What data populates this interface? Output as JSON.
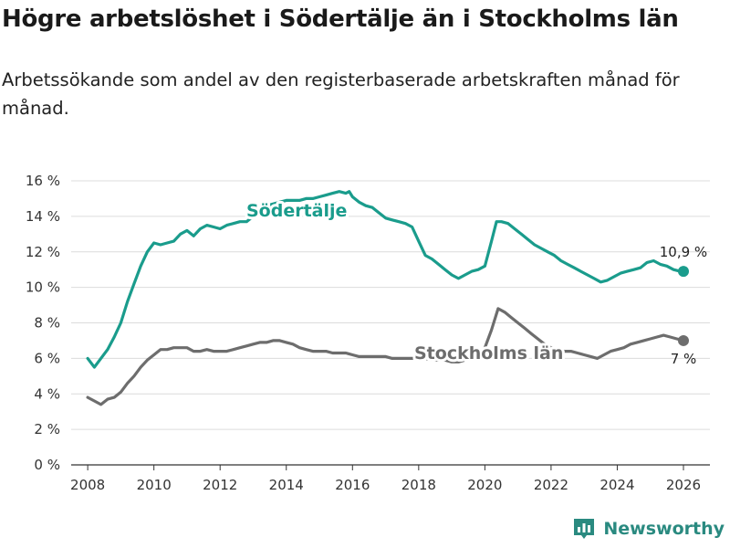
{
  "page": {
    "title": "Högre arbetslöshet i Södertälje än i Stockholms län",
    "subtitle": "Arbetssökande som andel av den registerbaserade arbetskraften månad för månad.",
    "brand": "Newsworthy"
  },
  "colors": {
    "sodertalje": "#1a9c8c",
    "stockholm": "#6d6d6d",
    "grid": "#dcdcdc",
    "axis": "#333333",
    "brand": "#2a8a80"
  },
  "chart_data": {
    "type": "line",
    "title": "Högre arbetslöshet i Södertälje än i Stockholms län",
    "subtitle": "Arbetssökande som andel av den registerbaserade arbetskraften månad för månad.",
    "xlabel": "",
    "ylabel": "",
    "xlim": [
      2007.5,
      2026.8
    ],
    "ylim": [
      0,
      16
    ],
    "y_ticks": [
      0,
      2,
      4,
      6,
      8,
      10,
      12,
      14,
      16
    ],
    "y_tick_labels": [
      "0 %",
      "2 %",
      "4 %",
      "6 %",
      "8 %",
      "10 %",
      "12 %",
      "14 %",
      "16 %"
    ],
    "x_ticks": [
      2008,
      2010,
      2012,
      2014,
      2016,
      2018,
      2020,
      2022,
      2024,
      2026
    ],
    "x_tick_labels": [
      "2008",
      "2010",
      "2012",
      "2014",
      "2016",
      "2018",
      "2020",
      "2022",
      "2024",
      "2026"
    ],
    "grid": true,
    "series": [
      {
        "name": "Södertälje",
        "end_label": "10,9 %",
        "x": [
          2008.0,
          2008.2,
          2008.4,
          2008.6,
          2008.8,
          2009.0,
          2009.2,
          2009.4,
          2009.6,
          2009.8,
          2010.0,
          2010.2,
          2010.4,
          2010.6,
          2010.8,
          2011.0,
          2011.2,
          2011.4,
          2011.6,
          2011.8,
          2012.0,
          2012.2,
          2012.4,
          2012.6,
          2012.8,
          2013.0,
          2013.2,
          2013.4,
          2013.6,
          2013.8,
          2014.0,
          2014.2,
          2014.4,
          2014.6,
          2014.8,
          2015.0,
          2015.2,
          2015.4,
          2015.6,
          2015.8,
          2015.9,
          2016.0,
          2016.2,
          2016.4,
          2016.6,
          2016.8,
          2017.0,
          2017.2,
          2017.4,
          2017.6,
          2017.8,
          2018.0,
          2018.2,
          2018.4,
          2018.6,
          2018.8,
          2019.0,
          2019.2,
          2019.4,
          2019.6,
          2019.8,
          2020.0,
          2020.2,
          2020.35,
          2020.5,
          2020.7,
          2020.9,
          2021.1,
          2021.3,
          2021.5,
          2021.7,
          2021.9,
          2022.1,
          2022.3,
          2022.5,
          2022.7,
          2022.9,
          2023.1,
          2023.3,
          2023.5,
          2023.7,
          2023.9,
          2024.1,
          2024.3,
          2024.5,
          2024.7,
          2024.9,
          2025.1,
          2025.3,
          2025.5,
          2025.7,
          2025.9,
          2026.0
        ],
        "values": [
          6.0,
          5.5,
          6.0,
          6.5,
          7.2,
          8.0,
          9.2,
          10.2,
          11.2,
          12.0,
          12.5,
          12.4,
          12.5,
          12.6,
          13.0,
          13.2,
          12.9,
          13.3,
          13.5,
          13.4,
          13.3,
          13.5,
          13.6,
          13.7,
          13.7,
          14.0,
          14.4,
          14.6,
          14.7,
          14.8,
          14.9,
          14.9,
          14.9,
          15.0,
          15.0,
          15.1,
          15.2,
          15.3,
          15.4,
          15.3,
          15.4,
          15.1,
          14.8,
          14.6,
          14.5,
          14.2,
          13.9,
          13.8,
          13.7,
          13.6,
          13.4,
          12.6,
          11.8,
          11.6,
          11.3,
          11.0,
          10.7,
          10.5,
          10.7,
          10.9,
          11.0,
          11.2,
          12.6,
          13.7,
          13.7,
          13.6,
          13.3,
          13.0,
          12.7,
          12.4,
          12.2,
          12.0,
          11.8,
          11.5,
          11.3,
          11.1,
          10.9,
          10.7,
          10.5,
          10.3,
          10.4,
          10.6,
          10.8,
          10.9,
          11.0,
          11.1,
          11.4,
          11.5,
          11.3,
          11.2,
          11.0,
          10.9,
          10.9
        ]
      },
      {
        "name": "Stockholms län",
        "end_label": "7 %",
        "x": [
          2008.0,
          2008.2,
          2008.4,
          2008.6,
          2008.8,
          2009.0,
          2009.2,
          2009.4,
          2009.6,
          2009.8,
          2010.0,
          2010.2,
          2010.4,
          2010.6,
          2010.8,
          2011.0,
          2011.2,
          2011.4,
          2011.6,
          2011.8,
          2012.0,
          2012.2,
          2012.4,
          2012.6,
          2012.8,
          2013.0,
          2013.2,
          2013.4,
          2013.6,
          2013.8,
          2014.0,
          2014.2,
          2014.4,
          2014.6,
          2014.8,
          2015.0,
          2015.2,
          2015.4,
          2015.6,
          2015.8,
          2016.0,
          2016.2,
          2016.4,
          2016.6,
          2016.8,
          2017.0,
          2017.2,
          2017.4,
          2017.6,
          2017.8,
          2018.0,
          2018.2,
          2018.4,
          2018.6,
          2018.8,
          2019.0,
          2019.2,
          2019.4,
          2019.6,
          2019.8,
          2020.0,
          2020.2,
          2020.4,
          2020.6,
          2020.8,
          2021.0,
          2021.2,
          2021.4,
          2021.6,
          2021.8,
          2022.0,
          2022.2,
          2022.4,
          2022.6,
          2022.8,
          2023.0,
          2023.2,
          2023.4,
          2023.6,
          2023.8,
          2024.0,
          2024.2,
          2024.4,
          2024.6,
          2024.8,
          2025.0,
          2025.2,
          2025.4,
          2025.6,
          2025.8,
          2026.0
        ],
        "values": [
          3.8,
          3.6,
          3.4,
          3.7,
          3.8,
          4.1,
          4.6,
          5.0,
          5.5,
          5.9,
          6.2,
          6.5,
          6.5,
          6.6,
          6.6,
          6.6,
          6.4,
          6.4,
          6.5,
          6.4,
          6.4,
          6.4,
          6.5,
          6.6,
          6.7,
          6.8,
          6.9,
          6.9,
          7.0,
          7.0,
          6.9,
          6.8,
          6.6,
          6.5,
          6.4,
          6.4,
          6.4,
          6.3,
          6.3,
          6.3,
          6.2,
          6.1,
          6.1,
          6.1,
          6.1,
          6.1,
          6.0,
          6.0,
          6.0,
          6.0,
          6.0,
          6.0,
          5.9,
          5.9,
          5.9,
          5.8,
          5.8,
          5.9,
          6.0,
          6.2,
          6.6,
          7.6,
          8.8,
          8.6,
          8.3,
          8.0,
          7.7,
          7.4,
          7.1,
          6.8,
          6.6,
          6.5,
          6.4,
          6.4,
          6.3,
          6.2,
          6.1,
          6.0,
          6.2,
          6.4,
          6.5,
          6.6,
          6.8,
          6.9,
          7.0,
          7.1,
          7.2,
          7.3,
          7.2,
          7.1,
          7.0
        ]
      }
    ]
  }
}
